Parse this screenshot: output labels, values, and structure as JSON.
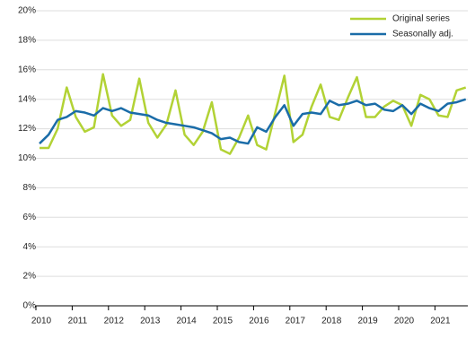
{
  "chart_data": {
    "type": "line",
    "categories": [
      "2010",
      null,
      null,
      null,
      "2011",
      null,
      null,
      null,
      "2012",
      null,
      null,
      null,
      "2013",
      null,
      null,
      null,
      "2014",
      null,
      null,
      null,
      "2015",
      null,
      null,
      null,
      "2016",
      null,
      null,
      null,
      "2017",
      null,
      null,
      null,
      "2018",
      null,
      null,
      null,
      "2019",
      null,
      null,
      null,
      "2020",
      null,
      null,
      null,
      "2021",
      null,
      null,
      null
    ],
    "series": [
      {
        "name": "Original series",
        "color": "#b2d235",
        "values": [
          10.7,
          10.7,
          12.0,
          14.8,
          12.8,
          11.8,
          12.1,
          15.7,
          12.9,
          12.2,
          12.6,
          15.4,
          12.4,
          11.4,
          12.3,
          14.6,
          11.6,
          10.9,
          11.8,
          13.8,
          10.6,
          10.3,
          11.4,
          12.9,
          10.9,
          10.6,
          13.1,
          15.6,
          11.1,
          11.6,
          13.5,
          15.0,
          12.8,
          12.6,
          14.1,
          15.5,
          12.8,
          12.8,
          13.5,
          13.9,
          13.6,
          12.2,
          14.3,
          14.0,
          12.9,
          12.8,
          14.6,
          14.8
        ]
      },
      {
        "name": "Seasonally adj.",
        "color": "#1a6ca8",
        "values": [
          11.0,
          11.6,
          12.6,
          12.8,
          13.2,
          13.1,
          12.9,
          13.4,
          13.2,
          13.4,
          13.1,
          13.0,
          12.9,
          12.6,
          12.4,
          12.3,
          12.2,
          12.1,
          11.9,
          11.7,
          11.3,
          11.4,
          11.1,
          11.0,
          12.1,
          11.8,
          12.8,
          13.6,
          12.2,
          13.0,
          13.1,
          13.0,
          13.9,
          13.6,
          13.7,
          13.9,
          13.6,
          13.7,
          13.3,
          13.2,
          13.6,
          13.0,
          13.7,
          13.4,
          13.2,
          13.7,
          13.8,
          14.0
        ]
      }
    ],
    "ylim": [
      0,
      20
    ],
    "yticks": [
      {
        "value": 0,
        "label": "0%"
      },
      {
        "value": 2,
        "label": "2%"
      },
      {
        "value": 4,
        "label": "4%"
      },
      {
        "value": 6,
        "label": "6%"
      },
      {
        "value": 8,
        "label": "8%"
      },
      {
        "value": 10,
        "label": "10%"
      },
      {
        "value": 12,
        "label": "12%"
      },
      {
        "value": 14,
        "label": "14%"
      },
      {
        "value": 16,
        "label": "16%"
      },
      {
        "value": 18,
        "label": "18%"
      },
      {
        "value": 20,
        "label": "20%"
      }
    ],
    "grid": true,
    "legend": "upper right"
  }
}
